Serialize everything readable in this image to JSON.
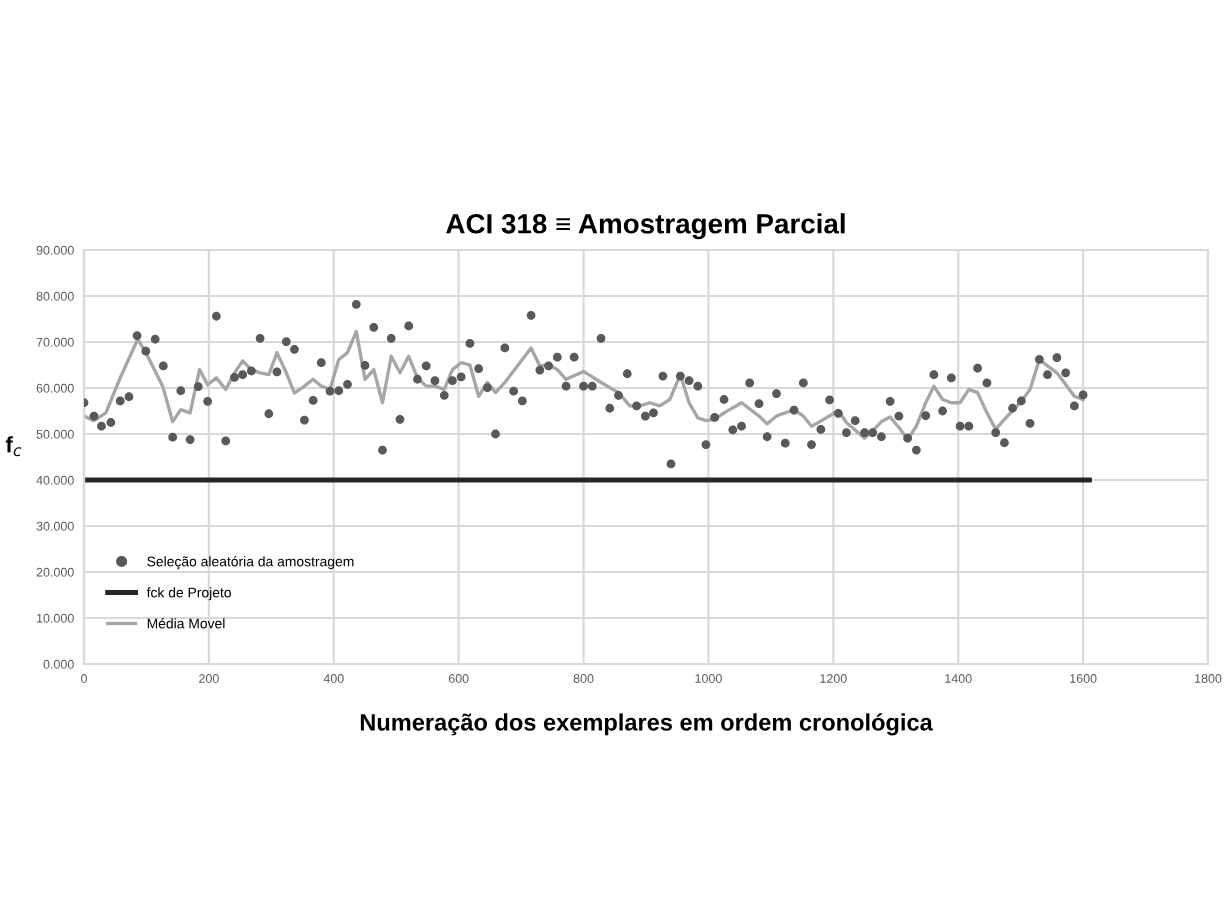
{
  "chart_data": {
    "type": "scatter",
    "title": "ACI 318 ≡ Amostragem Parcial",
    "xlabel": "Numeração dos exemplares em ordem cronológica",
    "ylabel": "f$_{c}$",
    "xlim": [
      0,
      1800
    ],
    "xticks": [
      0,
      200,
      400,
      600,
      800,
      1000,
      1200,
      1400,
      1600,
      1800
    ],
    "ylim": [
      0,
      90
    ],
    "yticks": [
      {
        "value": 0,
        "label": "0.000"
      },
      {
        "value": 10,
        "label": "10.000"
      },
      {
        "value": 20,
        "label": "20.000"
      },
      {
        "value": 30,
        "label": "30.000"
      },
      {
        "value": 40,
        "label": "40.000"
      },
      {
        "value": 50,
        "label": "50.000"
      },
      {
        "value": 60,
        "label": "60.000"
      },
      {
        "value": 70,
        "label": "70.000"
      },
      {
        "value": 80,
        "label": "80.000"
      },
      {
        "value": 90,
        "label": "90.000"
      }
    ],
    "grid": true,
    "legend": "left",
    "series": [
      {
        "name": "Seleção aleatória da amostragem",
        "type": "scatter",
        "marker": "circle",
        "color": "#595959",
        "x": [
          0,
          16,
          28,
          43,
          58,
          72,
          85,
          99,
          114,
          127,
          142,
          155,
          170,
          183,
          198,
          212,
          227,
          241,
          254,
          268,
          282,
          296,
          309,
          324,
          337,
          353,
          367,
          380,
          394,
          408,
          422,
          436,
          450,
          464,
          478,
          492,
          506,
          520,
          534,
          548,
          562,
          577,
          590,
          604,
          618,
          632,
          646,
          659,
          674,
          688,
          702,
          716,
          730,
          744,
          758,
          772,
          785,
          800,
          814,
          828,
          842,
          856,
          870,
          885,
          899,
          912,
          927,
          940,
          955,
          969,
          983,
          996,
          1010,
          1025,
          1039,
          1053,
          1066,
          1081,
          1094,
          1109,
          1123,
          1137,
          1152,
          1165,
          1180,
          1194,
          1208,
          1221,
          1235,
          1250,
          1263,
          1277,
          1291,
          1305,
          1319,
          1333,
          1348,
          1361,
          1375,
          1389,
          1403,
          1417,
          1431,
          1446,
          1460,
          1474,
          1487,
          1501,
          1515,
          1530,
          1543,
          1558,
          1572,
          1586,
          1600
        ],
        "values": [
          56.8,
          53.9,
          51.7,
          52.5,
          57.2,
          58.1,
          71.4,
          68.0,
          70.6,
          64.8,
          49.3,
          59.4,
          48.8,
          60.3,
          57.1,
          75.6,
          48.5,
          62.3,
          62.9,
          63.7,
          70.8,
          54.4,
          63.5,
          70.1,
          68.4,
          53.0,
          57.3,
          65.5,
          59.3,
          59.4,
          60.8,
          78.2,
          64.9,
          73.2,
          46.5,
          70.8,
          53.2,
          73.5,
          61.9,
          64.8,
          61.6,
          58.4,
          61.6,
          62.4,
          69.7,
          64.2,
          60.1,
          50.0,
          68.7,
          59.3,
          57.2,
          75.8,
          63.9,
          64.8,
          66.7,
          60.4,
          66.7,
          60.4,
          60.4,
          70.8,
          55.6,
          58.4,
          63.1,
          56.1,
          53.9,
          54.6,
          62.6,
          43.5,
          62.6,
          61.6,
          60.4,
          47.7,
          53.6,
          57.5,
          50.9,
          51.7,
          61.1,
          56.6,
          49.4,
          58.8,
          48.0,
          55.2,
          61.1,
          47.7,
          51.0,
          57.4,
          54.5,
          50.3,
          52.9,
          50.3,
          50.3,
          49.4,
          57.1,
          53.9,
          49.1,
          46.5,
          54.0,
          62.9,
          55.0,
          62.2,
          51.7,
          51.7,
          64.3,
          61.1,
          50.3,
          48.1,
          55.6,
          57.2,
          52.3,
          66.2,
          62.9,
          66.6,
          63.3,
          56.1,
          58.5
        ]
      },
      {
        "name": "fck de Projeto",
        "type": "line",
        "marker": "none",
        "line_style": "solid",
        "color": "#262626",
        "x": [
          0,
          1610
        ],
        "values": [
          40,
          40
        ]
      },
      {
        "name": "Média Movel",
        "type": "line",
        "marker": "none",
        "line_style": "solid",
        "color": "#a6a6a6",
        "x": [
          0,
          16,
          35,
          57,
          86,
          99,
          126,
          142,
          155,
          170,
          185,
          198,
          212,
          227,
          241,
          254,
          268,
          282,
          296,
          309,
          324,
          337,
          353,
          367,
          380,
          394,
          408,
          422,
          436,
          450,
          464,
          478,
          492,
          506,
          520,
          534,
          548,
          562,
          577,
          590,
          604,
          618,
          632,
          646,
          659,
          674,
          702,
          716,
          730,
          744,
          758,
          772,
          800,
          828,
          856,
          874,
          890,
          906,
          922,
          938,
          955,
          969,
          983,
          996,
          1010,
          1025,
          1053,
          1081,
          1094,
          1109,
          1137,
          1152,
          1165,
          1180,
          1208,
          1221,
          1250,
          1263,
          1277,
          1291,
          1305,
          1319,
          1333,
          1348,
          1361,
          1375,
          1389,
          1403,
          1417,
          1431,
          1446,
          1460,
          1474,
          1501,
          1515,
          1530,
          1543,
          1558,
          1586,
          1600
        ],
        "values": [
          53.9,
          52.9,
          54.6,
          61.9,
          70.6,
          67.7,
          60.4,
          52.7,
          55.3,
          54.6,
          64.0,
          60.7,
          62.2,
          59.7,
          63.3,
          65.9,
          64.0,
          63.3,
          62.9,
          67.7,
          63.3,
          58.9,
          60.4,
          61.9,
          60.4,
          59.7,
          66.2,
          67.7,
          72.3,
          61.9,
          64.0,
          56.8,
          66.9,
          63.3,
          66.9,
          62.2,
          60.4,
          60.4,
          59.7,
          64.0,
          65.5,
          65.0,
          58.2,
          61.2,
          59.0,
          61.2,
          66.2,
          68.7,
          64.8,
          65.1,
          64.0,
          61.9,
          63.6,
          61.2,
          59.0,
          56.1,
          56.1,
          56.8,
          56.1,
          57.5,
          62.9,
          56.8,
          53.5,
          52.9,
          53.2,
          54.6,
          56.8,
          53.9,
          52.2,
          53.9,
          55.3,
          53.9,
          51.7,
          52.8,
          55.1,
          52.5,
          49.1,
          50.7,
          52.7,
          53.7,
          51.4,
          48.8,
          51.7,
          56.8,
          60.4,
          57.5,
          56.8,
          56.8,
          59.7,
          59.0,
          54.6,
          51.0,
          53.2,
          57.1,
          59.7,
          66.2,
          64.8,
          63.3,
          58.2,
          57.5
        ]
      }
    ]
  }
}
